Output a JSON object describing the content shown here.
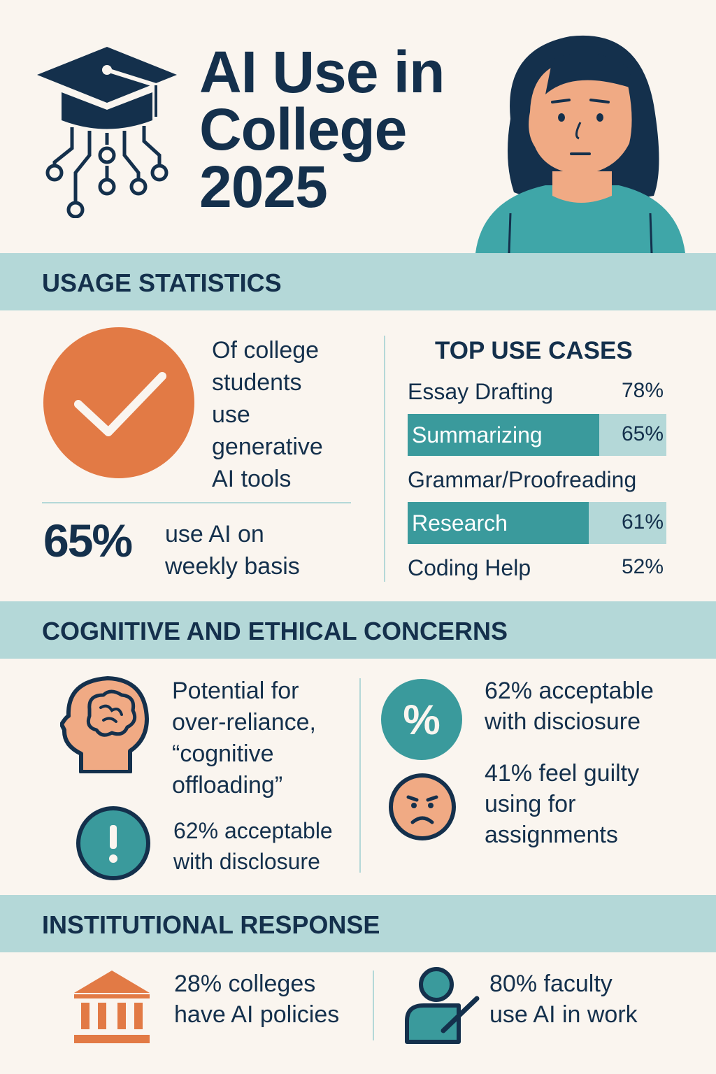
{
  "header": {
    "title_line1": "AI Use in",
    "title_line2": "College",
    "title_line3": "2025"
  },
  "sections": {
    "usage": "USAGE STATISTICS",
    "concerns": "COGNITIVE AND ETHICAL CONCERNS",
    "institutional": "INSTITUTIONAL RESPONSE"
  },
  "usage": {
    "students_line1": "Of college",
    "students_line2": "students",
    "students_line3": "use",
    "students_line4": "generative",
    "students_line5": "AI tools",
    "weekly_percent": "65%",
    "weekly_line1": "use AI on",
    "weekly_line2": "weekly basis"
  },
  "top_use_cases": {
    "title": "TOP USE CASES",
    "items": [
      {
        "label": "Essay Drafting",
        "value": "78%",
        "highlight": false
      },
      {
        "label": "Summarizing",
        "value": "65%",
        "highlight": true,
        "fill": 0.74
      },
      {
        "label": "Grammar/Proofreading",
        "value": "",
        "highlight": false
      },
      {
        "label": "Research",
        "value": "61%",
        "highlight": true,
        "fill": 0.7
      },
      {
        "label": "Coding Help",
        "value": "52%",
        "highlight": false
      }
    ]
  },
  "concerns": {
    "reliance_line1": "Potential for",
    "reliance_line2": "over-reliance,",
    "reliance_line3": "“cognitive",
    "reliance_line4": "offloading”",
    "disclosure_left_line1": "62% acceptable",
    "disclosure_left_line2": "with disclosure",
    "disclosure_right_line1": "62% acceptable",
    "disclosure_right_line2": "with disciosure",
    "guilty_line1": "41% feel guilty",
    "guilty_line2": "using for",
    "guilty_line3": "assignments"
  },
  "institutional": {
    "colleges_line1": "28% colleges",
    "colleges_line2": "have AI policies",
    "faculty_line1": "80% faculty",
    "faculty_line2": "use AI in work"
  },
  "colors": {
    "navy": "#14304c",
    "teal": "#3a9a9c",
    "light_teal": "#b4d8d8",
    "orange": "#e27a45",
    "peach": "#f0aa84",
    "background": "#faf5ef"
  },
  "icons": [
    "graduation-cap-circuit-icon",
    "woman-portrait-icon",
    "checkmark-icon",
    "head-brain-icon",
    "exclamation-icon",
    "percent-icon",
    "frown-face-icon",
    "institution-building-icon",
    "teacher-board-icon"
  ]
}
